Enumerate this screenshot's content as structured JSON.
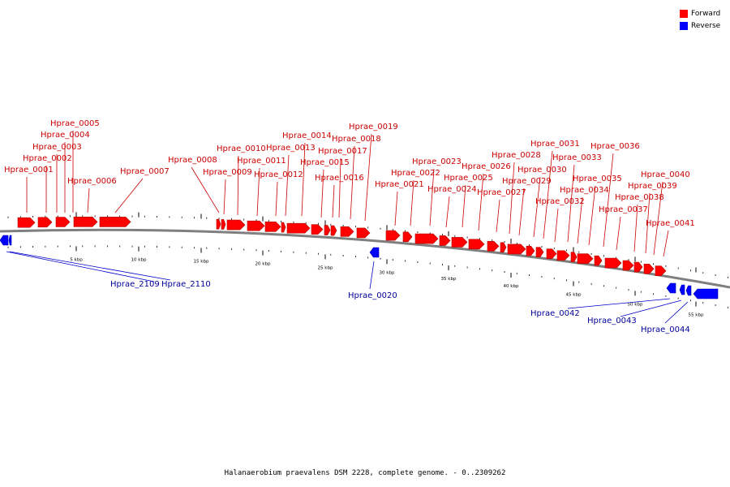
{
  "caption": "Halanaerobium praevalens DSM 2228, complete genome. - 0..2309262",
  "legend": [
    {
      "label": "Forward",
      "color": "#ff0000"
    },
    {
      "label": "Reverse",
      "color": "#0000ff"
    }
  ],
  "colors": {
    "forward": "#ff0000",
    "reverse": "#0000ff",
    "backbone": "#7f7f7f"
  },
  "scale_labels": [
    "5 kbp",
    "10 kbp",
    "15 kbp",
    "20 kbp",
    "25 kbp",
    "30 kbp",
    "35 kbp",
    "40 kbp",
    "45 kbp",
    "50 kbp",
    "55 kbp"
  ],
  "forward_genes": [
    "Hprae_0001",
    "Hprae_0002",
    "Hprae_0003",
    "Hprae_0004",
    "Hprae_0005",
    "Hprae_0006",
    "Hprae_0007",
    "Hprae_0008",
    "Hprae_0009",
    "Hprae_0010",
    "Hprae_0011",
    "Hprae_0012",
    "Hprae_0013",
    "Hprae_0014",
    "Hprae_0015",
    "Hprae_0016",
    "Hprae_0017",
    "Hprae_0018",
    "Hprae_0019",
    "Hprae_0021",
    "Hprae_0022",
    "Hprae_0023",
    "Hprae_0024",
    "Hprae_0025",
    "Hprae_0026",
    "Hprae_0027",
    "Hprae_0028",
    "Hprae_0029",
    "Hprae_0030",
    "Hprae_0031",
    "Hprae_0032",
    "Hprae_0033",
    "Hprae_0034",
    "Hprae_0035",
    "Hprae_0036",
    "Hprae_0037",
    "Hprae_0038",
    "Hprae_0039",
    "Hprae_0040",
    "Hprae_0041"
  ],
  "reverse_genes": [
    "Hprae_2109",
    "Hprae_2110",
    "Hprae_0020",
    "Hprae_0042",
    "Hprae_0043",
    "Hprae_0044"
  ]
}
